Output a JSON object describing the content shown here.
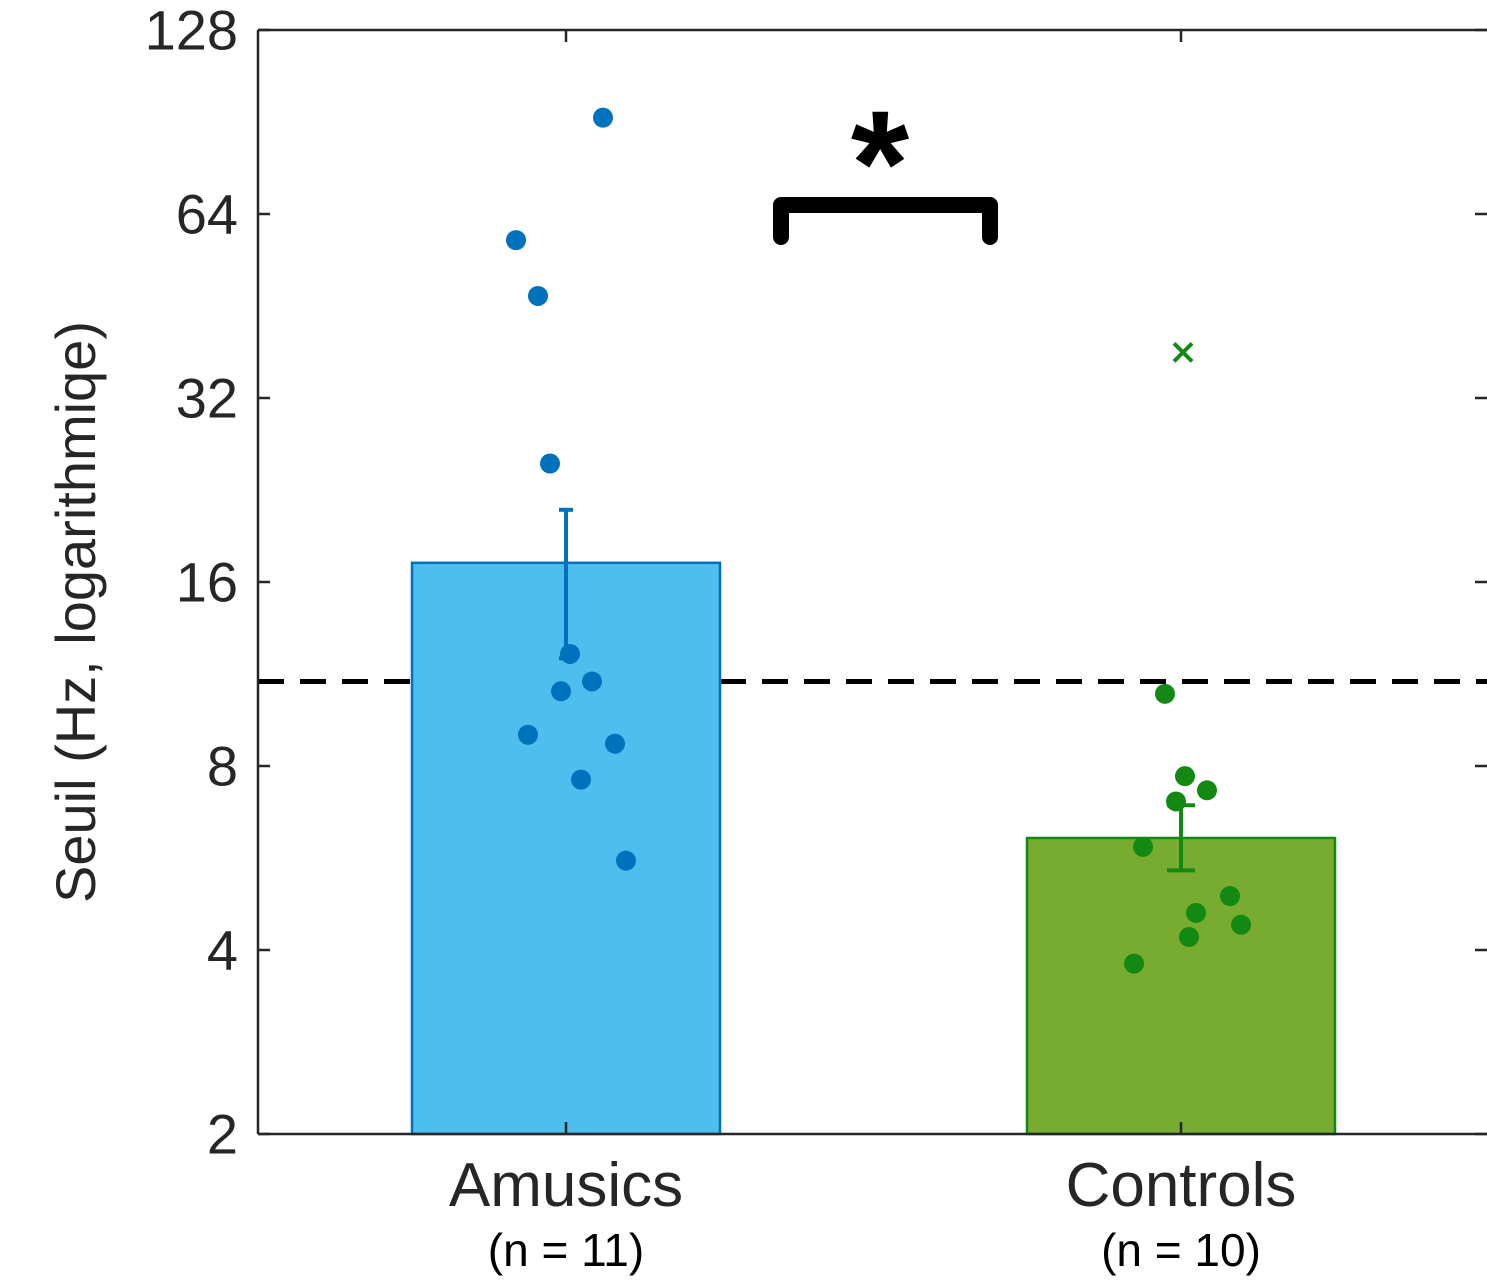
{
  "chart_data": {
    "type": "bar",
    "title": "",
    "xlabel": "",
    "ylabel": "Seuil (Hz, logarithmiqe)",
    "yscale": "log2",
    "ylim": [
      2,
      128
    ],
    "yticks": [
      2,
      4,
      8,
      16,
      32,
      64,
      128
    ],
    "ytick_labels": [
      "2",
      "4",
      "8",
      "16",
      "32",
      "64",
      "128"
    ],
    "grid": false,
    "categories": [
      "Amusics",
      "Controls"
    ],
    "group_sizes": [
      "(n = 11)",
      "(n = 10)"
    ],
    "bars": [
      {
        "category": "Amusics",
        "value": 17.2,
        "error_low": 12.0,
        "error_high": 21.0,
        "fill_color": "#4dbeee",
        "edge_color": "#0072bd",
        "point_color": "#0072bd",
        "points": [
          92,
          58,
          47,
          25,
          12.2,
          11.0,
          10.6,
          9.0,
          8.7,
          7.6,
          5.6
        ],
        "outliers": []
      },
      {
        "category": "Controls",
        "value": 6.1,
        "error_low": 5.4,
        "error_high": 6.9,
        "fill_color": "#77ac30",
        "edge_color": "#138813",
        "point_color": "#138813",
        "points": [
          10.5,
          7.7,
          7.3,
          7.0,
          5.9,
          4.9,
          4.6,
          4.4,
          4.2,
          3.8
        ],
        "outliers": [
          38
        ]
      }
    ],
    "reference_line": {
      "value": 11.0,
      "style": "dashed",
      "color": "#000000"
    },
    "significance": {
      "label": "*",
      "between": [
        "Amusics",
        "Controls"
      ]
    }
  }
}
